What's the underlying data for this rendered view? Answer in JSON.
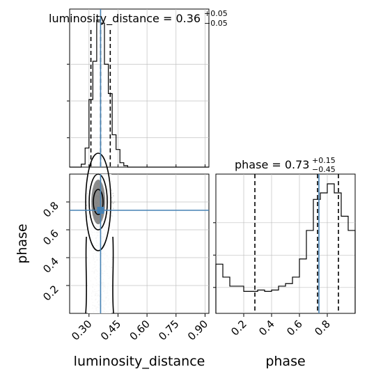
{
  "colors": {
    "truth": "#4682b4",
    "hist": "#000000",
    "grid": "#c0c0c0",
    "scatter": "#808080"
  },
  "chart_data": {
    "type": "corner",
    "parameters": [
      "luminosity_distance",
      "phase"
    ],
    "truths": {
      "luminosity_distance": 0.36,
      "phase": 0.74
    },
    "titles": {
      "luminosity_distance": {
        "label": "luminosity_distance = 0.36",
        "plus": "+0.05",
        "minus": "−0.05"
      },
      "phase": {
        "label": "phase = 0.73",
        "plus": "+0.15",
        "minus": "−0.45"
      }
    },
    "quantiles": {
      "luminosity_distance": [
        0.31,
        0.36,
        0.41
      ],
      "phase": [
        0.28,
        0.73,
        0.88
      ]
    },
    "xlabels": {
      "luminosity_distance": "luminosity_distance",
      "phase": "phase"
    },
    "ylabels": {
      "phase": "phase"
    },
    "ranges": {
      "luminosity_distance": [
        0.2,
        0.92
      ],
      "phase": [
        0.0,
        1.0
      ]
    },
    "ticks": {
      "luminosity_distance": [
        "0.30",
        "0.45",
        "0.60",
        "0.75",
        "0.90"
      ],
      "phase": [
        "0.2",
        "0.4",
        "0.6",
        "0.8"
      ]
    },
    "hist_luminosity_distance": {
      "edges": [
        0.2,
        0.22,
        0.24,
        0.26,
        0.28,
        0.3,
        0.32,
        0.34,
        0.36,
        0.38,
        0.4,
        0.42,
        0.44,
        0.46,
        0.48,
        0.5,
        0.52,
        0.92
      ],
      "counts": [
        0,
        0,
        0,
        0.02,
        0.13,
        0.46,
        0.72,
        1.0,
        0.98,
        0.7,
        0.5,
        0.22,
        0.12,
        0.03,
        0.01,
        0.0,
        0.0
      ]
    },
    "hist_phase": {
      "edges": [
        0.0,
        0.05,
        0.1,
        0.15,
        0.2,
        0.25,
        0.3,
        0.35,
        0.4,
        0.45,
        0.5,
        0.55,
        0.6,
        0.65,
        0.7,
        0.75,
        0.8,
        0.85,
        0.9,
        0.95,
        1.0
      ],
      "counts": [
        0.38,
        0.28,
        0.21,
        0.21,
        0.17,
        0.17,
        0.18,
        0.17,
        0.18,
        0.21,
        0.23,
        0.28,
        0.42,
        0.64,
        0.88,
        0.93,
        1.0,
        0.93,
        0.75,
        0.64
      ]
    },
    "grid": true
  }
}
